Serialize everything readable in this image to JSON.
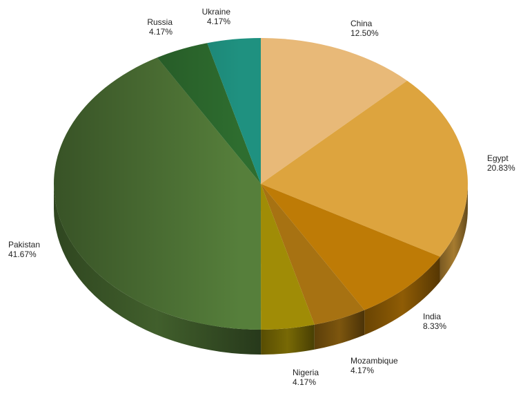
{
  "chart_data": {
    "type": "pie",
    "title": "",
    "series": [
      {
        "label": "China",
        "pct_label": "12.50%",
        "value": 12.5,
        "color": "#E8B978"
      },
      {
        "label": "Egypt",
        "pct_label": "20.83%",
        "value": 20.83,
        "color": "#DDA43E"
      },
      {
        "label": "India",
        "pct_label": "8.33%",
        "value": 8.33,
        "color": "#BE7B06"
      },
      {
        "label": "Mozambique",
        "pct_label": "4.17%",
        "value": 4.17,
        "color": "#A77212"
      },
      {
        "label": "Nigeria",
        "pct_label": "4.17%",
        "value": 4.17,
        "color": "#A08C06"
      },
      {
        "label": "Pakistan",
        "pct_label": "41.67%",
        "value": 41.67,
        "color": "#567F3B"
      },
      {
        "label": "Russia",
        "pct_label": "4.17%",
        "value": 4.17,
        "color": "#2E6D2F"
      },
      {
        "label": "Ukraine",
        "pct_label": "4.17%",
        "value": 4.17,
        "color": "#1F9180"
      }
    ],
    "legend": "none",
    "style": "3d-pie"
  }
}
